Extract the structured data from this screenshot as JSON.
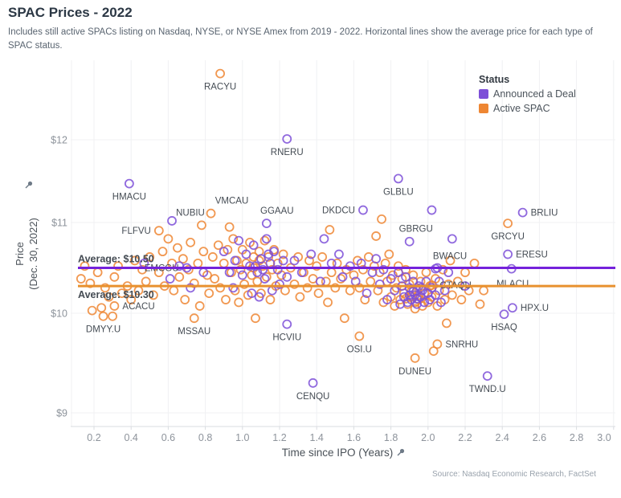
{
  "header": {
    "title": "SPAC Prices - 2022",
    "subtitle": "Includes still active SPACs listing on Nasdaq, NYSE, or NYSE Amex from 2019 - 2022. Horizontal lines show the average price for each type of SPAC status."
  },
  "source": "Source: Nasdaq Economic Research, FactSet",
  "legend": {
    "title": "Status",
    "items": [
      {
        "label": "Announced a Deal",
        "color": "#7d4fd8",
        "key": "deal"
      },
      {
        "label": "Active SPAC",
        "color": "#ee8633",
        "key": "active"
      }
    ]
  },
  "axes": {
    "x": {
      "title": "Time since IPO (Years)",
      "ticks": [
        0.2,
        0.4,
        0.6,
        0.8,
        1.0,
        1.2,
        1.4,
        1.6,
        1.8,
        2.0,
        2.2,
        2.4,
        2.6,
        2.8,
        3.0
      ]
    },
    "y": {
      "title_line1": "Price",
      "title_line2": "(Dec. 30, 2022)",
      "ticks": [
        {
          "value": 12,
          "label": "$12"
        },
        {
          "value": 11,
          "label": "$11"
        },
        {
          "value": 10,
          "label": "$10"
        },
        {
          "value": 9,
          "label": "$9"
        }
      ]
    }
  },
  "colors": {
    "deal_point": "#7d4fd8",
    "active_point": "#ee8633",
    "deal_line": "#7522db",
    "active_line": "#e8912f",
    "gridline": "#f0f1f3",
    "axis_line": "#d9dce0",
    "tick_text": "#8d939b",
    "label_text": "#454c54"
  },
  "chart_data": {
    "type": "scatter",
    "title": "SPAC Prices - 2022",
    "xlabel": "Time since IPO (Years)",
    "ylabel": "Price (Dec. 30, 2022)",
    "xlim": [
      0.07,
      3.05
    ],
    "ylim": [
      8.8,
      12.9
    ],
    "grid": true,
    "legend_position": "top-right",
    "series_names": {
      "deal": "Announced a Deal",
      "active": "Active SPAC"
    },
    "avg_lines": [
      {
        "label": "Average: $10.50",
        "value": 10.5,
        "series": "Announced a Deal",
        "color": "#7522db"
      },
      {
        "label": "Average: $10.30",
        "value": 10.3,
        "series": "Active SPAC",
        "color": "#e8912f"
      }
    ],
    "labeled_points": [
      {
        "ticker": "RACYU",
        "x": 0.88,
        "price": 12.8,
        "status": "active",
        "pos": "below"
      },
      {
        "ticker": "RNERU",
        "x": 1.24,
        "price": 12.01,
        "status": "deal",
        "pos": "below"
      },
      {
        "ticker": "HMACU",
        "x": 0.39,
        "price": 11.47,
        "status": "deal",
        "pos": "below"
      },
      {
        "ticker": "GLBLU",
        "x": 1.84,
        "price": 11.53,
        "status": "deal",
        "pos": "below"
      },
      {
        "ticker": "VMCAU",
        "x": 0.83,
        "price": 11.11,
        "status": "active",
        "pos": "above",
        "dx": 26
      },
      {
        "ticker": "NUBIU",
        "x": 0.78,
        "price": 10.97,
        "status": "active",
        "pos": "above",
        "dx": -14
      },
      {
        "ticker": "GGAAU",
        "x": 1.13,
        "price": 10.99,
        "status": "deal",
        "pos": "above",
        "dx": 13
      },
      {
        "ticker": "DKDCU",
        "x": 1.65,
        "price": 11.15,
        "status": "deal",
        "pos": "left"
      },
      {
        "ticker": "BRLIU",
        "x": 2.51,
        "price": 11.12,
        "status": "deal",
        "pos": "right"
      },
      {
        "ticker": "FLFVU",
        "x": 0.55,
        "price": 10.91,
        "status": "active",
        "pos": "left"
      },
      {
        "ticker": "GBRGU",
        "x": 1.9,
        "price": 10.79,
        "status": "deal",
        "pos": "above",
        "dx": 8
      },
      {
        "ticker": "GRCYU",
        "x": 2.43,
        "price": 10.99,
        "status": "active",
        "pos": "below"
      },
      {
        "ticker": "BWACU",
        "x": 2.04,
        "price": 10.49,
        "status": "deal",
        "pos": "above",
        "dx": 18
      },
      {
        "ticker": "ERESU",
        "x": 2.43,
        "price": 10.65,
        "status": "deal",
        "pos": "right"
      },
      {
        "ticker": "EMCGU",
        "x": 0.7,
        "price": 10.5,
        "status": "deal",
        "pos": "left"
      },
      {
        "ticker": "CTAQU",
        "x": 2.02,
        "price": 10.31,
        "status": "active",
        "pos": "right"
      },
      {
        "ticker": "MLACU",
        "x": 2.3,
        "price": 10.25,
        "status": "active",
        "pos": "above",
        "dx": 36,
        "dy": 7
      },
      {
        "ticker": "ACACU",
        "x": 0.31,
        "price": 10.08,
        "status": "active",
        "pos": "right"
      },
      {
        "ticker": "HPX.U",
        "x": 2.455,
        "price": 10.06,
        "status": "deal",
        "pos": "right"
      },
      {
        "ticker": "DMYY.U",
        "x": 0.25,
        "price": 9.97,
        "status": "active",
        "pos": "below"
      },
      {
        "ticker": "MSSAU",
        "x": 0.74,
        "price": 9.95,
        "status": "active",
        "pos": "below"
      },
      {
        "ticker": "HCVIU",
        "x": 1.24,
        "price": 9.89,
        "status": "deal",
        "pos": "below"
      },
      {
        "ticker": "HSAQ",
        "x": 2.41,
        "price": 9.99,
        "status": "deal",
        "pos": "below"
      },
      {
        "ticker": "OSI.U",
        "x": 1.63,
        "price": 9.77,
        "status": "active",
        "pos": "below"
      },
      {
        "ticker": "SNRHU",
        "x": 2.05,
        "price": 9.69,
        "status": "active",
        "pos": "right"
      },
      {
        "ticker": "DUNEU",
        "x": 1.93,
        "price": 9.55,
        "status": "active",
        "pos": "below"
      },
      {
        "ticker": "CENQU",
        "x": 1.38,
        "price": 9.3,
        "status": "deal",
        "pos": "below"
      },
      {
        "ticker": "TWND.U",
        "x": 2.32,
        "price": 9.37,
        "status": "deal",
        "pos": "below"
      }
    ],
    "active_points": [
      [
        0.13,
        10.38
      ],
      [
        0.15,
        10.52
      ],
      [
        0.18,
        10.33
      ],
      [
        0.19,
        10.03
      ],
      [
        0.22,
        10.45
      ],
      [
        0.24,
        10.06
      ],
      [
        0.26,
        10.28
      ],
      [
        0.28,
        10.18
      ],
      [
        0.3,
        9.97
      ],
      [
        0.31,
        10.4
      ],
      [
        0.33,
        10.52
      ],
      [
        0.35,
        10.22
      ],
      [
        0.38,
        10.3
      ],
      [
        0.4,
        10.15
      ],
      [
        0.42,
        10.58
      ],
      [
        0.44,
        10.25
      ],
      [
        0.46,
        10.48
      ],
      [
        0.48,
        10.35
      ],
      [
        0.5,
        10.62
      ],
      [
        0.52,
        10.2
      ],
      [
        0.55,
        10.45
      ],
      [
        0.57,
        10.68
      ],
      [
        0.58,
        10.3
      ],
      [
        0.6,
        10.82
      ],
      [
        0.62,
        10.55
      ],
      [
        0.63,
        10.25
      ],
      [
        0.65,
        10.72
      ],
      [
        0.66,
        10.4
      ],
      [
        0.68,
        10.6
      ],
      [
        0.69,
        10.15
      ],
      [
        0.71,
        10.48
      ],
      [
        0.72,
        10.78
      ],
      [
        0.74,
        10.33
      ],
      [
        0.76,
        10.55
      ],
      [
        0.77,
        10.08
      ],
      [
        0.79,
        10.68
      ],
      [
        0.81,
        10.42
      ],
      [
        0.82,
        10.22
      ],
      [
        0.84,
        10.62
      ],
      [
        0.85,
        10.38
      ],
      [
        0.87,
        10.75
      ],
      [
        0.88,
        10.28
      ],
      [
        0.9,
        10.55
      ],
      [
        0.91,
        10.15
      ],
      [
        0.92,
        10.7
      ],
      [
        0.93,
        10.95
      ],
      [
        0.94,
        10.45
      ],
      [
        0.95,
        10.82
      ],
      [
        0.96,
        10.25
      ],
      [
        0.97,
        10.58
      ],
      [
        0.98,
        10.12
      ],
      [
        0.99,
        10.48
      ],
      [
        1.0,
        10.7
      ],
      [
        1.01,
        10.32
      ],
      [
        1.02,
        10.55
      ],
      [
        1.03,
        10.2
      ],
      [
        1.04,
        10.78
      ],
      [
        1.05,
        10.42
      ],
      [
        1.06,
        10.5
      ],
      [
        1.06,
        10.62
      ],
      [
        1.07,
        9.95
      ],
      [
        1.08,
        10.35
      ],
      [
        1.09,
        10.58
      ],
      [
        1.09,
        10.68
      ],
      [
        1.1,
        10.22
      ],
      [
        1.11,
        10.52
      ],
      [
        1.12,
        10.8
      ],
      [
        1.13,
        10.4
      ],
      [
        1.14,
        10.62
      ],
      [
        1.15,
        10.15
      ],
      [
        1.16,
        10.48
      ],
      [
        1.17,
        10.7
      ],
      [
        1.18,
        10.3
      ],
      [
        1.19,
        10.55
      ],
      [
        1.21,
        10.42
      ],
      [
        1.22,
        10.65
      ],
      [
        1.23,
        10.25
      ],
      [
        1.26,
        10.5
      ],
      [
        1.28,
        10.32
      ],
      [
        1.3,
        10.62
      ],
      [
        1.31,
        10.18
      ],
      [
        1.33,
        10.45
      ],
      [
        1.35,
        10.28
      ],
      [
        1.36,
        10.58
      ],
      [
        1.38,
        10.38
      ],
      [
        1.4,
        10.52
      ],
      [
        1.41,
        10.22
      ],
      [
        1.43,
        10.62
      ],
      [
        1.45,
        10.35
      ],
      [
        1.46,
        10.12
      ],
      [
        1.47,
        10.92
      ],
      [
        1.48,
        10.45
      ],
      [
        1.5,
        10.28
      ],
      [
        1.51,
        10.55
      ],
      [
        1.53,
        10.38
      ],
      [
        1.55,
        9.95
      ],
      [
        1.56,
        10.48
      ],
      [
        1.58,
        10.25
      ],
      [
        1.6,
        10.42
      ],
      [
        1.62,
        10.58
      ],
      [
        1.63,
        10.28
      ],
      [
        1.65,
        10.48
      ],
      [
        1.66,
        10.15
      ],
      [
        1.68,
        10.62
      ],
      [
        1.69,
        10.35
      ],
      [
        1.71,
        10.52
      ],
      [
        1.72,
        10.85
      ],
      [
        1.73,
        10.25
      ],
      [
        1.74,
        10.45
      ],
      [
        1.75,
        11.04
      ],
      [
        1.76,
        10.12
      ],
      [
        1.77,
        10.55
      ],
      [
        1.78,
        10.35
      ],
      [
        1.79,
        10.65
      ],
      [
        1.8,
        10.18
      ],
      [
        1.81,
        10.42
      ],
      [
        1.82,
        10.08
      ],
      [
        1.83,
        10.28
      ],
      [
        1.84,
        10.52
      ],
      [
        1.85,
        10.15
      ],
      [
        1.86,
        10.38
      ],
      [
        1.87,
        10.22
      ],
      [
        1.88,
        10.16
      ],
      [
        1.88,
        10.48
      ],
      [
        1.89,
        10.1
      ],
      [
        1.9,
        10.32
      ],
      [
        1.91,
        10.18
      ],
      [
        1.91,
        10.24
      ],
      [
        1.92,
        10.42
      ],
      [
        1.93,
        10.05
      ],
      [
        1.93,
        10.12
      ],
      [
        1.94,
        10.25
      ],
      [
        1.95,
        10.15
      ],
      [
        1.95,
        10.2
      ],
      [
        1.96,
        10.35
      ],
      [
        1.97,
        10.08
      ],
      [
        1.98,
        10.22
      ],
      [
        1.99,
        10.45
      ],
      [
        2.0,
        10.12
      ],
      [
        2.01,
        10.3
      ],
      [
        2.02,
        10.18
      ],
      [
        2.03,
        9.62
      ],
      [
        2.04,
        10.38
      ],
      [
        2.05,
        10.08
      ],
      [
        2.06,
        10.25
      ],
      [
        2.08,
        10.48
      ],
      [
        2.09,
        10.15
      ],
      [
        2.1,
        9.9
      ],
      [
        2.11,
        10.32
      ],
      [
        2.12,
        10.58
      ],
      [
        2.13,
        10.2
      ],
      [
        2.16,
        10.35
      ],
      [
        2.18,
        10.15
      ],
      [
        2.2,
        10.45
      ],
      [
        2.22,
        10.25
      ],
      [
        2.25,
        10.55
      ],
      [
        2.28,
        10.1
      ]
    ],
    "deal_points": [
      [
        0.47,
        10.55
      ],
      [
        0.61,
        10.38
      ],
      [
        0.62,
        11.02
      ],
      [
        0.66,
        10.52
      ],
      [
        0.72,
        10.28
      ],
      [
        0.79,
        10.45
      ],
      [
        0.9,
        10.68
      ],
      [
        0.93,
        10.45
      ],
      [
        0.95,
        10.28
      ],
      [
        0.96,
        10.58
      ],
      [
        0.98,
        10.8
      ],
      [
        1.0,
        10.42
      ],
      [
        1.02,
        10.65
      ],
      [
        1.04,
        10.52
      ],
      [
        1.05,
        10.22
      ],
      [
        1.06,
        10.75
      ],
      [
        1.07,
        10.52
      ],
      [
        1.08,
        10.45
      ],
      [
        1.09,
        10.18
      ],
      [
        1.1,
        10.6
      ],
      [
        1.11,
        10.48
      ],
      [
        1.12,
        10.38
      ],
      [
        1.13,
        10.82
      ],
      [
        1.14,
        10.65
      ],
      [
        1.15,
        10.55
      ],
      [
        1.16,
        10.25
      ],
      [
        1.17,
        10.68
      ],
      [
        1.19,
        10.48
      ],
      [
        1.2,
        10.32
      ],
      [
        1.22,
        10.58
      ],
      [
        1.24,
        10.4
      ],
      [
        1.28,
        10.58
      ],
      [
        1.32,
        10.45
      ],
      [
        1.37,
        10.65
      ],
      [
        1.42,
        10.35
      ],
      [
        1.44,
        10.82
      ],
      [
        1.48,
        10.55
      ],
      [
        1.52,
        10.65
      ],
      [
        1.54,
        10.4
      ],
      [
        1.58,
        10.52
      ],
      [
        1.61,
        10.35
      ],
      [
        1.64,
        10.55
      ],
      [
        1.67,
        10.22
      ],
      [
        1.7,
        10.45
      ],
      [
        1.72,
        10.6
      ],
      [
        1.74,
        10.32
      ],
      [
        1.76,
        10.48
      ],
      [
        1.78,
        10.15
      ],
      [
        1.8,
        10.38
      ],
      [
        1.82,
        10.25
      ],
      [
        1.84,
        10.45
      ],
      [
        1.85,
        10.1
      ],
      [
        1.86,
        10.3
      ],
      [
        1.87,
        10.18
      ],
      [
        1.88,
        10.4
      ],
      [
        1.89,
        10.12
      ],
      [
        1.9,
        10.2
      ],
      [
        1.9,
        10.28
      ],
      [
        1.91,
        10.15
      ],
      [
        1.92,
        10.24
      ],
      [
        1.92,
        10.35
      ],
      [
        1.93,
        10.2
      ],
      [
        1.94,
        10.1
      ],
      [
        1.94,
        10.16
      ],
      [
        1.95,
        10.3
      ],
      [
        1.96,
        10.18
      ],
      [
        1.96,
        10.28
      ],
      [
        1.97,
        10.25
      ],
      [
        1.98,
        10.12
      ],
      [
        1.99,
        10.35
      ],
      [
        2.0,
        10.22
      ],
      [
        2.01,
        10.15
      ],
      [
        2.02,
        10.28
      ],
      [
        2.02,
        11.15
      ],
      [
        2.04,
        10.2
      ],
      [
        2.05,
        10.5
      ],
      [
        2.06,
        10.35
      ],
      [
        2.07,
        10.12
      ],
      [
        2.09,
        10.25
      ],
      [
        2.11,
        10.45
      ],
      [
        2.13,
        10.82
      ],
      [
        2.2,
        10.3
      ],
      [
        2.45,
        10.49
      ]
    ]
  }
}
